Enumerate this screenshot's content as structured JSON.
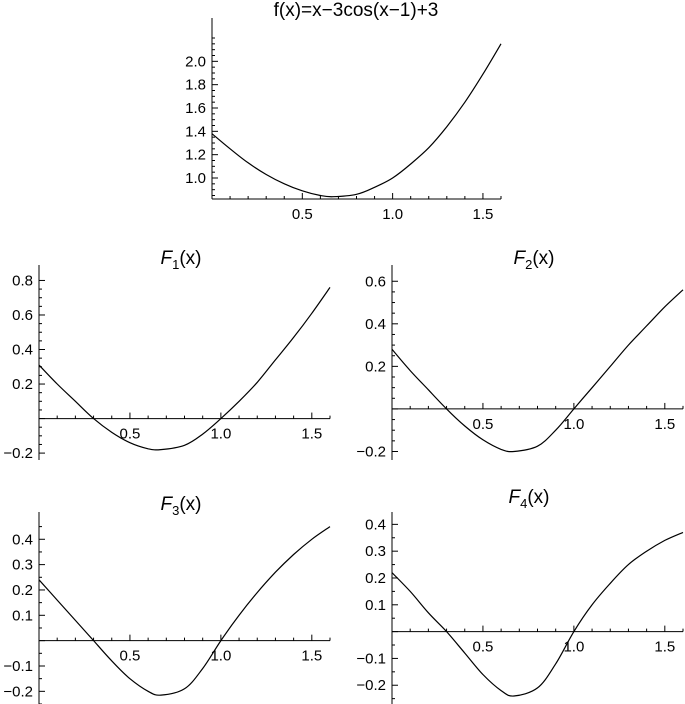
{
  "chart_data": [
    {
      "type": "line",
      "title": "f(x)=x−3cos(x−1)+3",
      "xlim": [
        0,
        1.6
      ],
      "ylim": [
        0.82,
        2.2
      ],
      "xticks": [
        {
          "v": 0.5,
          "label": "0.5"
        },
        {
          "v": 1.0,
          "label": "1.0"
        },
        {
          "v": 1.5,
          "label": "1.5"
        }
      ],
      "yticks": [
        {
          "v": 1.0,
          "label": "1.0"
        },
        {
          "v": 1.2,
          "label": "1.2"
        },
        {
          "v": 1.4,
          "label": "1.4"
        },
        {
          "v": 1.6,
          "label": "1.6"
        },
        {
          "v": 1.8,
          "label": "1.8"
        },
        {
          "v": 2.0,
          "label": "2.0"
        }
      ],
      "x_axis_at": 0.82,
      "series": [
        {
          "x": [
            0,
            0.1,
            0.2,
            0.3,
            0.4,
            0.5,
            0.6,
            0.67,
            0.8,
            0.9,
            1.0,
            1.1,
            1.2,
            1.3,
            1.4,
            1.5,
            1.6
          ],
          "y": [
            1.38,
            1.25,
            1.13,
            1.03,
            0.95,
            0.89,
            0.85,
            0.84,
            0.86,
            0.92,
            1.0,
            1.12,
            1.26,
            1.44,
            1.65,
            1.89,
            2.15
          ]
        }
      ]
    },
    {
      "type": "line",
      "title": {
        "main": "F",
        "sub": "1",
        "arg": "(x)"
      },
      "xlim": [
        0,
        1.6
      ],
      "ylim": [
        -0.24,
        0.82
      ],
      "xticks": [
        {
          "v": 0.5,
          "label": "0.5"
        },
        {
          "v": 1.0,
          "label": "1.0"
        },
        {
          "v": 1.5,
          "label": "1.5"
        }
      ],
      "yticks": [
        {
          "v": -0.2,
          "label": "−0.2"
        },
        {
          "v": 0.2,
          "label": "0.2"
        },
        {
          "v": 0.4,
          "label": "0.4"
        },
        {
          "v": 0.6,
          "label": "0.6"
        },
        {
          "v": 0.8,
          "label": "0.8"
        }
      ],
      "x_axis_at": 0,
      "series": [
        {
          "x": [
            0,
            0.1,
            0.2,
            0.3,
            0.4,
            0.5,
            0.6,
            0.67,
            0.8,
            0.9,
            1.0,
            1.1,
            1.2,
            1.3,
            1.4,
            1.5,
            1.6
          ],
          "y": [
            0.31,
            0.2,
            0.1,
            0.0,
            -0.08,
            -0.14,
            -0.175,
            -0.18,
            -0.155,
            -0.09,
            0.0,
            0.1,
            0.21,
            0.34,
            0.47,
            0.61,
            0.76
          ]
        }
      ]
    },
    {
      "type": "line",
      "title": {
        "main": "F",
        "sub": "2",
        "arg": "(x)"
      },
      "xlim": [
        0,
        1.6
      ],
      "ylim": [
        -0.24,
        0.62
      ],
      "xticks": [
        {
          "v": 0.5,
          "label": "0.5"
        },
        {
          "v": 1.0,
          "label": "1.0"
        },
        {
          "v": 1.5,
          "label": "1.5"
        }
      ],
      "yticks": [
        {
          "v": -0.2,
          "label": "−0.2"
        },
        {
          "v": 0.2,
          "label": "0.2"
        },
        {
          "v": 0.4,
          "label": "0.4"
        },
        {
          "v": 0.6,
          "label": "0.6"
        }
      ],
      "x_axis_at": 0,
      "series": [
        {
          "x": [
            0,
            0.1,
            0.2,
            0.3,
            0.4,
            0.5,
            0.6,
            0.67,
            0.8,
            0.9,
            1.0,
            1.1,
            1.2,
            1.3,
            1.4,
            1.5,
            1.6
          ],
          "y": [
            0.28,
            0.18,
            0.09,
            0.0,
            -0.08,
            -0.145,
            -0.19,
            -0.2,
            -0.175,
            -0.1,
            0.0,
            0.1,
            0.2,
            0.3,
            0.39,
            0.48,
            0.56
          ]
        }
      ]
    },
    {
      "type": "line",
      "title": {
        "main": "F",
        "sub": "3",
        "arg": "(x)"
      },
      "xlim": [
        0,
        1.6
      ],
      "ylim": [
        -0.25,
        0.48
      ],
      "xticks": [
        {
          "v": 0.5,
          "label": "0.5"
        },
        {
          "v": 1.0,
          "label": "1.0"
        },
        {
          "v": 1.5,
          "label": "1.5"
        }
      ],
      "yticks": [
        {
          "v": -0.2,
          "label": "−0.2"
        },
        {
          "v": -0.1,
          "label": "−0.1"
        },
        {
          "v": 0.1,
          "label": "0.1"
        },
        {
          "v": 0.2,
          "label": "0.2"
        },
        {
          "v": 0.3,
          "label": "0.3"
        },
        {
          "v": 0.4,
          "label": "0.4"
        }
      ],
      "x_axis_at": 0,
      "series": [
        {
          "x": [
            0,
            0.1,
            0.2,
            0.3,
            0.4,
            0.5,
            0.6,
            0.67,
            0.8,
            0.9,
            1.0,
            1.1,
            1.2,
            1.3,
            1.4,
            1.5,
            1.6
          ],
          "y": [
            0.24,
            0.16,
            0.08,
            0.0,
            -0.08,
            -0.15,
            -0.2,
            -0.215,
            -0.19,
            -0.11,
            0.0,
            0.1,
            0.19,
            0.27,
            0.34,
            0.4,
            0.45
          ]
        }
      ]
    },
    {
      "type": "line",
      "title": {
        "main": "F",
        "sub": "4",
        "arg": "(x)"
      },
      "xlim": [
        0,
        1.6
      ],
      "ylim": [
        -0.27,
        0.42
      ],
      "xticks": [
        {
          "v": 0.5,
          "label": "0.5"
        },
        {
          "v": 1.0,
          "label": "1.0"
        },
        {
          "v": 1.5,
          "label": "1.5"
        }
      ],
      "yticks": [
        {
          "v": -0.2,
          "label": "−0.2"
        },
        {
          "v": -0.1,
          "label": "−0.1"
        },
        {
          "v": 0.1,
          "label": "0.1"
        },
        {
          "v": 0.2,
          "label": "0.2"
        },
        {
          "v": 0.3,
          "label": "0.3"
        },
        {
          "v": 0.4,
          "label": "0.4"
        }
      ],
      "x_axis_at": 0,
      "series": [
        {
          "x": [
            0,
            0.1,
            0.2,
            0.3,
            0.4,
            0.5,
            0.6,
            0.67,
            0.8,
            0.9,
            1.0,
            1.1,
            1.2,
            1.3,
            1.4,
            1.5,
            1.6
          ],
          "y": [
            0.22,
            0.15,
            0.07,
            0.0,
            -0.08,
            -0.16,
            -0.22,
            -0.24,
            -0.21,
            -0.12,
            0.0,
            0.1,
            0.18,
            0.25,
            0.3,
            0.34,
            0.37
          ]
        }
      ]
    }
  ]
}
